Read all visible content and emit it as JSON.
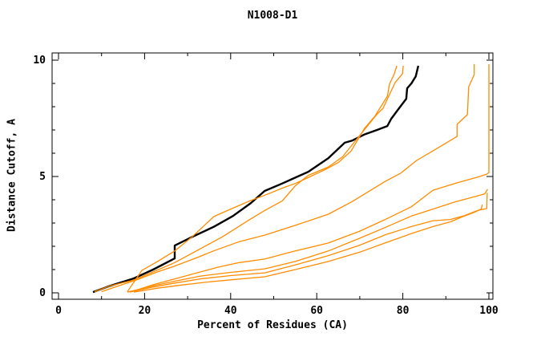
{
  "page": {
    "title": "N1008-D1"
  },
  "chart_data": {
    "type": "line",
    "title": "N1008-D1",
    "xlabel": "Percent of Residues (CA)",
    "ylabel": "Distance Cutoff, A",
    "xlim": [
      0,
      100
    ],
    "ylim": [
      0,
      10
    ],
    "grid": false,
    "legend": "none",
    "x_major_ticks": [
      0,
      20,
      40,
      60,
      80,
      100
    ],
    "x_minor_ticks": [
      10,
      30,
      50,
      70,
      90
    ],
    "y_major_ticks": [
      0,
      5,
      10
    ],
    "y_minor_ticks": [
      1,
      2,
      3,
      4,
      6,
      7,
      8,
      9
    ],
    "colors": {
      "target_curve": "#000000",
      "model_curves": "#ff8c00"
    },
    "series": [
      {
        "name": "target-black",
        "color": "#000000",
        "width": 2.4,
        "points": [
          [
            8,
            0.03
          ],
          [
            12,
            0.3
          ],
          [
            17.5,
            0.62
          ],
          [
            22,
            1.0
          ],
          [
            27,
            1.48
          ],
          [
            27,
            2.03
          ],
          [
            31,
            2.4
          ],
          [
            36,
            2.83
          ],
          [
            40.5,
            3.3
          ],
          [
            44.7,
            3.86
          ],
          [
            47.9,
            4.38
          ],
          [
            52,
            4.7
          ],
          [
            55,
            4.95
          ],
          [
            58,
            5.2
          ],
          [
            62.7,
            5.79
          ],
          [
            66.5,
            6.45
          ],
          [
            68.3,
            6.55
          ],
          [
            71,
            6.8
          ],
          [
            74,
            7.0
          ],
          [
            76.4,
            7.17
          ],
          [
            77.3,
            7.48
          ],
          [
            79,
            7.9
          ],
          [
            80.8,
            8.34
          ],
          [
            81,
            8.79
          ],
          [
            82,
            9.0
          ],
          [
            83,
            9.3
          ],
          [
            83.6,
            9.76
          ]
        ]
      },
      {
        "name": "model-1",
        "color": "#ff8c00",
        "width": 1.3,
        "points": [
          [
            16,
            0.05
          ],
          [
            19.4,
            0.97
          ],
          [
            23,
            1.35
          ],
          [
            27,
            1.8
          ],
          [
            31,
            2.4
          ],
          [
            36.1,
            3.28
          ],
          [
            40,
            3.6
          ],
          [
            44.7,
            3.97
          ],
          [
            48,
            4.2
          ],
          [
            52,
            4.5
          ],
          [
            55,
            4.7
          ],
          [
            58,
            4.95
          ],
          [
            62,
            5.3
          ],
          [
            65,
            5.6
          ],
          [
            68,
            6.1
          ],
          [
            71.1,
            7.07
          ],
          [
            73.5,
            7.59
          ],
          [
            76.4,
            8.45
          ],
          [
            76.9,
            8.97
          ],
          [
            78,
            9.41
          ],
          [
            78.6,
            9.76
          ]
        ]
      },
      {
        "name": "model-2",
        "color": "#ff8c00",
        "width": 1.3,
        "points": [
          [
            8.4,
            0.05
          ],
          [
            12,
            0.3
          ],
          [
            17.5,
            0.55
          ],
          [
            22,
            0.9
          ],
          [
            27,
            1.3
          ],
          [
            33,
            1.9
          ],
          [
            38,
            2.4
          ],
          [
            44,
            3.1
          ],
          [
            48,
            3.55
          ],
          [
            52,
            3.95
          ],
          [
            55,
            4.6
          ],
          [
            58,
            5.05
          ],
          [
            62.7,
            5.41
          ],
          [
            66,
            5.85
          ],
          [
            69.8,
            6.72
          ],
          [
            73.9,
            7.65
          ],
          [
            75.4,
            7.93
          ],
          [
            78.2,
            9.03
          ],
          [
            79.9,
            9.41
          ],
          [
            80.1,
            9.76
          ]
        ]
      },
      {
        "name": "model-3",
        "color": "#ff8c00",
        "width": 1.3,
        "points": [
          [
            10,
            0.05
          ],
          [
            14,
            0.3
          ],
          [
            18,
            0.55
          ],
          [
            23,
            0.9
          ],
          [
            27,
            1.15
          ],
          [
            32,
            1.5
          ],
          [
            36,
            1.8
          ],
          [
            42,
            2.2
          ],
          [
            47.9,
            2.48
          ],
          [
            55,
            2.9
          ],
          [
            62.7,
            3.38
          ],
          [
            68,
            3.9
          ],
          [
            72,
            4.35
          ],
          [
            76,
            4.8
          ],
          [
            79.5,
            5.14
          ],
          [
            83.2,
            5.69
          ],
          [
            87,
            6.1
          ],
          [
            92.6,
            6.72
          ],
          [
            92.6,
            7.24
          ],
          [
            95,
            7.66
          ],
          [
            95.3,
            8.86
          ],
          [
            96.6,
            9.38
          ],
          [
            96.6,
            9.83
          ]
        ]
      },
      {
        "name": "model-4",
        "color": "#ff8c00",
        "width": 1.3,
        "points": [
          [
            17,
            0.05
          ],
          [
            22,
            0.35
          ],
          [
            27,
            0.6
          ],
          [
            32,
            0.85
          ],
          [
            37,
            1.1
          ],
          [
            42,
            1.3
          ],
          [
            47.9,
            1.45
          ],
          [
            55,
            1.8
          ],
          [
            62.7,
            2.14
          ],
          [
            70,
            2.65
          ],
          [
            75.8,
            3.14
          ],
          [
            82,
            3.7
          ],
          [
            87,
            4.41
          ],
          [
            93,
            4.75
          ],
          [
            97,
            4.95
          ],
          [
            99.5,
            5.1
          ],
          [
            100,
            5.17
          ],
          [
            100,
            9.83
          ]
        ]
      },
      {
        "name": "model-5",
        "color": "#ff8c00",
        "width": 1.3,
        "points": [
          [
            16,
            0.03
          ],
          [
            22,
            0.3
          ],
          [
            27,
            0.5
          ],
          [
            33,
            0.72
          ],
          [
            40,
            0.88
          ],
          [
            47.9,
            1.03
          ],
          [
            55,
            1.35
          ],
          [
            62.7,
            1.8
          ],
          [
            70,
            2.35
          ],
          [
            75.8,
            2.8
          ],
          [
            82,
            3.3
          ],
          [
            87,
            3.6
          ],
          [
            92,
            3.9
          ],
          [
            96,
            4.1
          ],
          [
            99,
            4.25
          ],
          [
            99.7,
            4.45
          ]
        ]
      },
      {
        "name": "model-6",
        "color": "#ff8c00",
        "width": 1.3,
        "points": [
          [
            16.5,
            0.03
          ],
          [
            22,
            0.25
          ],
          [
            27,
            0.42
          ],
          [
            33,
            0.6
          ],
          [
            40,
            0.74
          ],
          [
            47.9,
            0.86
          ],
          [
            55,
            1.2
          ],
          [
            62.7,
            1.6
          ],
          [
            70,
            2.05
          ],
          [
            76,
            2.5
          ],
          [
            82,
            2.85
          ],
          [
            87,
            3.1
          ],
          [
            91,
            3.15
          ],
          [
            94,
            3.3
          ],
          [
            97.5,
            3.55
          ],
          [
            99.5,
            3.62
          ],
          [
            99.6,
            4.3
          ]
        ]
      },
      {
        "name": "model-7",
        "color": "#ff8c00",
        "width": 1.3,
        "points": [
          [
            17.5,
            0.03
          ],
          [
            23,
            0.2
          ],
          [
            28,
            0.32
          ],
          [
            34,
            0.45
          ],
          [
            40,
            0.56
          ],
          [
            47.9,
            0.69
          ],
          [
            55,
            1.0
          ],
          [
            62.7,
            1.35
          ],
          [
            70,
            1.75
          ],
          [
            76,
            2.15
          ],
          [
            82,
            2.55
          ],
          [
            87,
            2.85
          ],
          [
            91,
            3.05
          ],
          [
            94,
            3.28
          ],
          [
            96.5,
            3.45
          ],
          [
            98.2,
            3.6
          ],
          [
            98.5,
            3.79
          ]
        ]
      }
    ]
  }
}
